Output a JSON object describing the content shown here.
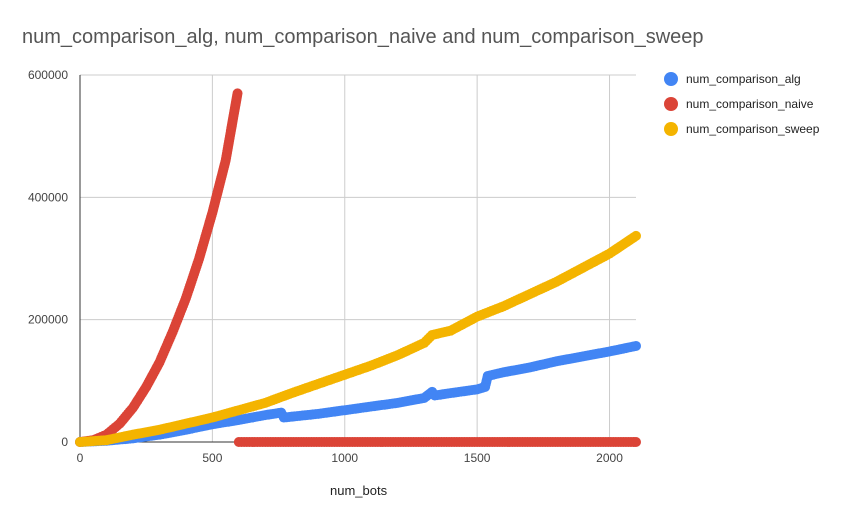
{
  "chart_data": {
    "type": "scatter",
    "title": "num_comparison_alg, num_comparison_naive and num_comparison_sweep",
    "xlabel": "num_bots",
    "ylabel": "",
    "xlim": [
      0,
      2100
    ],
    "ylim": [
      0,
      600000
    ],
    "x_ticks": [
      "0",
      "500",
      "1000",
      "1500",
      "2000"
    ],
    "y_ticks": [
      "0",
      "200000",
      "400000",
      "600000"
    ],
    "grid": true,
    "legend_position": "right",
    "series": [
      {
        "name": "num_comparison_alg",
        "color": "#4285f4",
        "points": [
          [
            0,
            0
          ],
          [
            100,
            2000
          ],
          [
            200,
            6000
          ],
          [
            300,
            12000
          ],
          [
            400,
            20000
          ],
          [
            500,
            29000
          ],
          [
            600,
            36000
          ],
          [
            700,
            44000
          ],
          [
            760,
            48000
          ],
          [
            770,
            40000
          ],
          [
            900,
            46000
          ],
          [
            1000,
            52000
          ],
          [
            1100,
            58000
          ],
          [
            1200,
            64000
          ],
          [
            1300,
            72000
          ],
          [
            1330,
            82000
          ],
          [
            1340,
            76000
          ],
          [
            1400,
            80000
          ],
          [
            1500,
            86000
          ],
          [
            1530,
            90000
          ],
          [
            1540,
            108000
          ],
          [
            1600,
            114000
          ],
          [
            1700,
            122000
          ],
          [
            1800,
            132000
          ],
          [
            1900,
            140000
          ],
          [
            2000,
            148000
          ],
          [
            2100,
            157000
          ]
        ]
      },
      {
        "name": "num_comparison_naive",
        "color": "#db4437",
        "points": [
          [
            0,
            0
          ],
          [
            50,
            3000
          ],
          [
            100,
            12000
          ],
          [
            150,
            30000
          ],
          [
            200,
            56000
          ],
          [
            250,
            90000
          ],
          [
            300,
            130000
          ],
          [
            350,
            180000
          ],
          [
            400,
            235000
          ],
          [
            450,
            300000
          ],
          [
            500,
            375000
          ],
          [
            550,
            460000
          ],
          [
            595,
            570000
          ],
          [
            600,
            0
          ],
          [
            700,
            0
          ],
          [
            1000,
            0
          ],
          [
            1500,
            0
          ],
          [
            2100,
            0
          ]
        ]
      },
      {
        "name": "num_comparison_sweep",
        "color": "#f4b400",
        "points": [
          [
            0,
            0
          ],
          [
            100,
            3000
          ],
          [
            200,
            12000
          ],
          [
            300,
            20000
          ],
          [
            400,
            30000
          ],
          [
            500,
            40000
          ],
          [
            600,
            52000
          ],
          [
            700,
            64000
          ],
          [
            800,
            80000
          ],
          [
            900,
            95000
          ],
          [
            1000,
            110000
          ],
          [
            1100,
            125000
          ],
          [
            1200,
            142000
          ],
          [
            1300,
            162000
          ],
          [
            1330,
            175000
          ],
          [
            1400,
            182000
          ],
          [
            1500,
            205000
          ],
          [
            1600,
            222000
          ],
          [
            1700,
            242000
          ],
          [
            1800,
            262000
          ],
          [
            1900,
            285000
          ],
          [
            2000,
            308000
          ],
          [
            2100,
            337000
          ]
        ]
      }
    ]
  }
}
